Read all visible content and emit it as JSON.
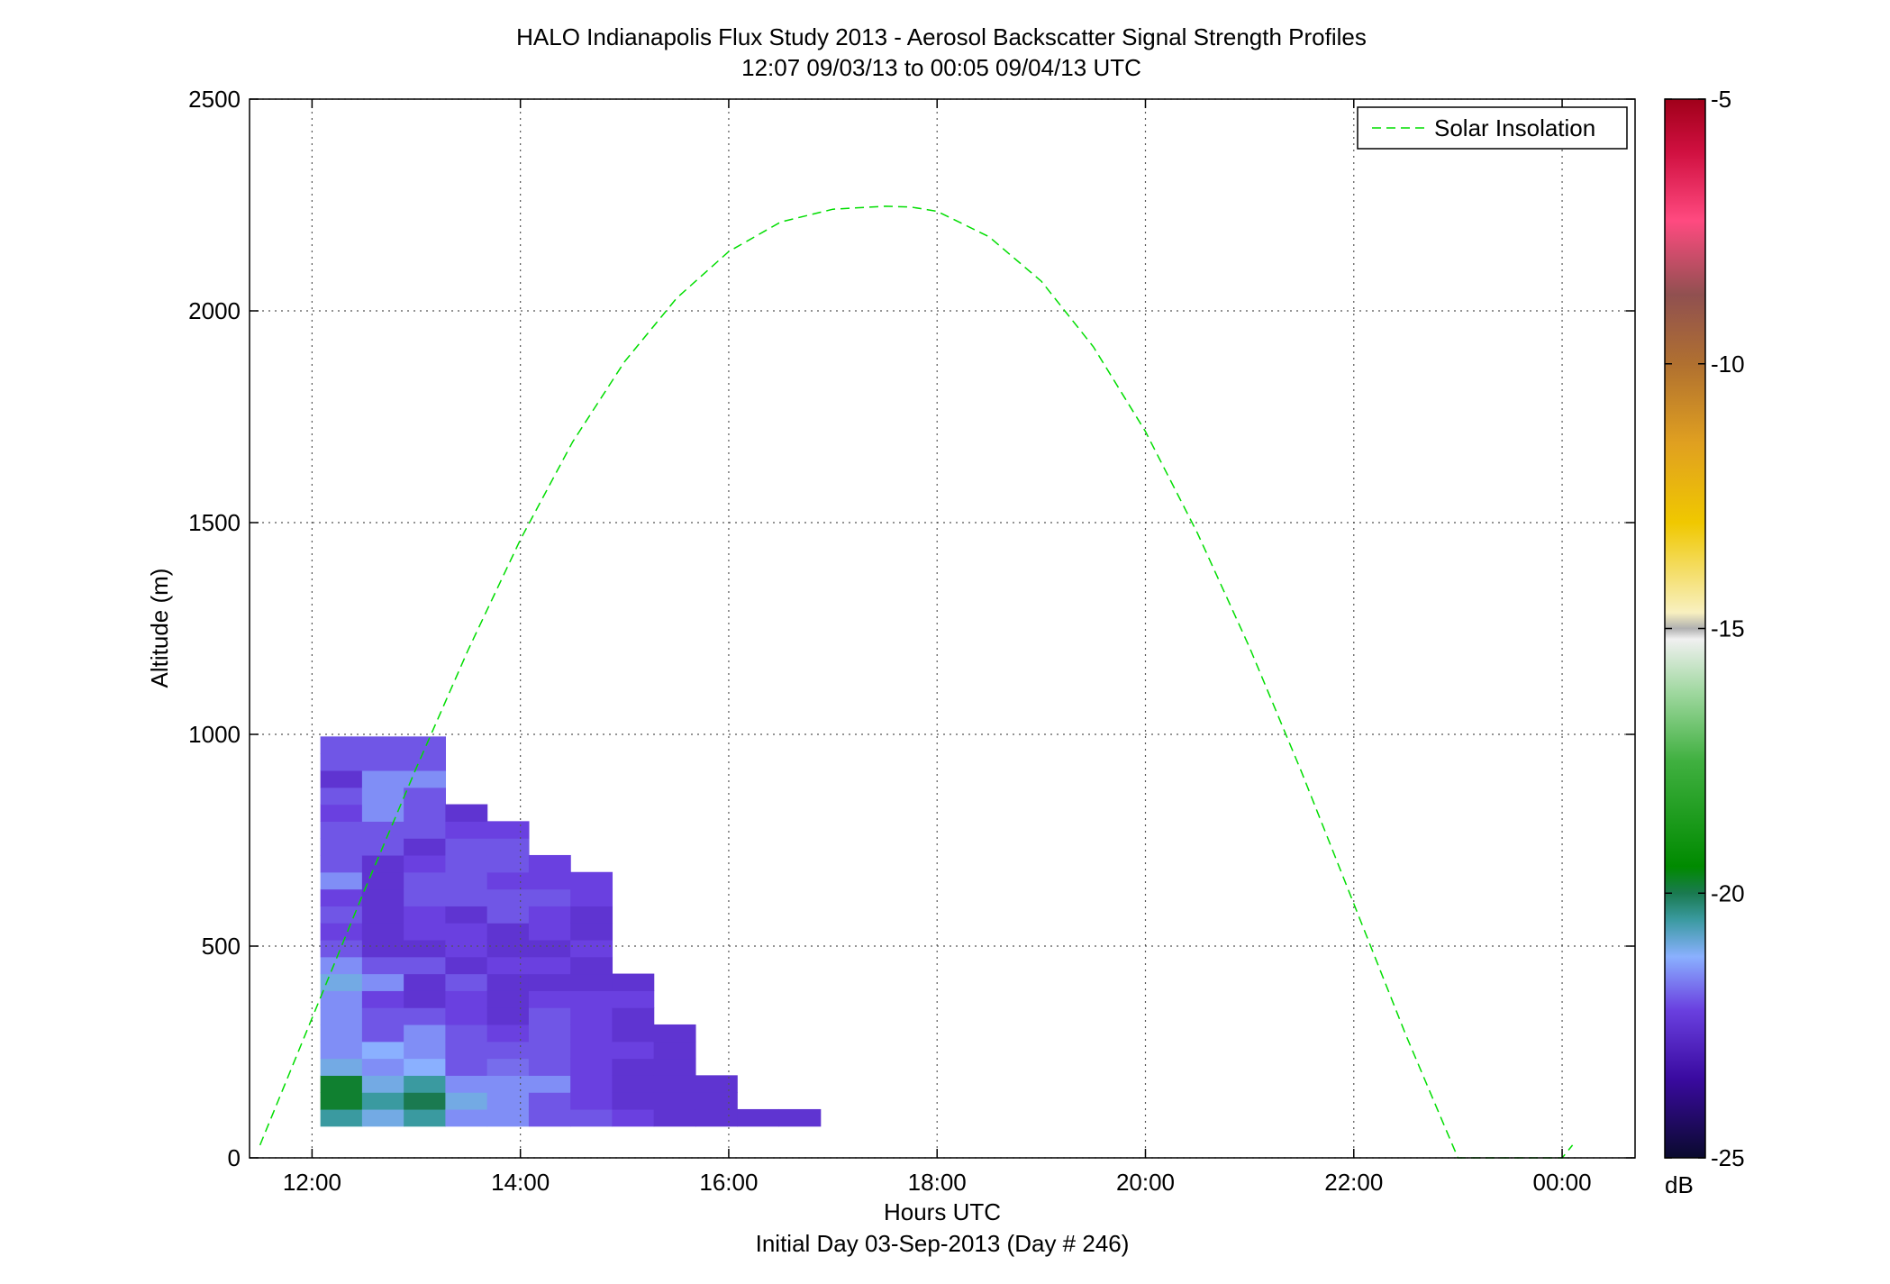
{
  "chart_data": {
    "type": "heatmap",
    "title": "HALO Indianapolis Flux Study 2013 - Aerosol Backscatter Signal Strength Profiles",
    "subtitle": "12:07 09/03/13 to 00:05 09/04/13  UTC",
    "xlabel": "Hours UTC",
    "xlabel2": "Initial Day 03-Sep-2013 (Day # 246)",
    "ylabel": "Altitude (m)",
    "xlim": [
      11.4,
      24.7
    ],
    "ylim": [
      0,
      2500
    ],
    "x_ticks": [
      12,
      14,
      16,
      18,
      20,
      22,
      24
    ],
    "x_tick_labels": [
      "12:00",
      "14:00",
      "16:00",
      "18:00",
      "20:00",
      "22:00",
      "00:00"
    ],
    "y_ticks": [
      0,
      500,
      1000,
      1500,
      2000,
      2500
    ],
    "y_tick_labels": [
      "0",
      "500",
      "1000",
      "1500",
      "2000",
      "2500"
    ],
    "grid": true,
    "colorbar": {
      "range": [
        -25,
        -5
      ],
      "ticks": [
        -5,
        -10,
        -15,
        -20,
        -25
      ],
      "tick_labels": [
        "-5",
        "-10",
        "-15",
        "-20",
        "-25"
      ],
      "label": "dB",
      "stops": [
        {
          "v": -25,
          "c": "#0a0a2e"
        },
        {
          "v": -23.5,
          "c": "#3a0aa0"
        },
        {
          "v": -22.2,
          "c": "#6a40e0"
        },
        {
          "v": -21.2,
          "c": "#8ab0ff"
        },
        {
          "v": -20.5,
          "c": "#3a9aa0"
        },
        {
          "v": -20,
          "c": "#1a7a50"
        },
        {
          "v": -19.5,
          "c": "#008a00"
        },
        {
          "v": -17.5,
          "c": "#40b040"
        },
        {
          "v": -16.2,
          "c": "#a0d8a0"
        },
        {
          "v": -15.2,
          "c": "#f0f0f0"
        },
        {
          "v": -15,
          "c": "#b0b0b0"
        },
        {
          "v": -14.7,
          "c": "#f8f0c0"
        },
        {
          "v": -13,
          "c": "#f0c800"
        },
        {
          "v": -11.5,
          "c": "#e0a020"
        },
        {
          "v": -10,
          "c": "#b07030"
        },
        {
          "v": -8.7,
          "c": "#905050"
        },
        {
          "v": -7.3,
          "c": "#ff4a80"
        },
        {
          "v": -6,
          "c": "#d01040"
        },
        {
          "v": -5,
          "c": "#a0001a"
        }
      ]
    },
    "legend": {
      "entries": [
        "Solar Insolation"
      ],
      "placement": "top-right",
      "line_color": "#00dd00",
      "line_style": "dashed"
    },
    "series": [
      {
        "name": "Solar Insolation",
        "kind": "line",
        "x": [
          11.5,
          12.0,
          12.5,
          13.0,
          13.5,
          14.0,
          14.5,
          15.0,
          15.5,
          16.0,
          16.5,
          17.0,
          17.5,
          17.75,
          18.0,
          18.5,
          19.0,
          19.5,
          20.0,
          20.5,
          21.0,
          21.5,
          22.0,
          22.5,
          23.0,
          23.5,
          24.0,
          24.1
        ],
        "y": [
          30,
          330,
          630,
          920,
          1200,
          1460,
          1690,
          1880,
          2030,
          2140,
          2210,
          2240,
          2247,
          2245,
          2235,
          2175,
          2070,
          1915,
          1715,
          1475,
          1205,
          910,
          600,
          290,
          0,
          0,
          0,
          30
        ]
      }
    ],
    "cells_meta": {
      "x_start": 12.08,
      "dx": 0.4,
      "y_start": 75,
      "dy": 40
    },
    "cells": [
      [
        -20.5,
        -19.8,
        -19.8,
        -21.0,
        -21.5,
        -21.5,
        -21.5,
        -21.5,
        -21.0,
        -21.5,
        -22.0,
        -22.2,
        -22.0,
        -22.2,
        -21.5,
        -22.0,
        -22.0,
        -22.0,
        -22.2,
        -22.0,
        -22.5,
        -22.0,
        -22.0
      ],
      [
        -21.0,
        -20.5,
        -21.0,
        -21.5,
        -21.2,
        -22.0,
        -22.0,
        -22.2,
        -21.5,
        -22.0,
        -22.5,
        -22.5,
        -22.5,
        -22.5,
        -22.5,
        -22.5,
        -22.0,
        -22.0,
        -21.5,
        -21.5,
        -21.5,
        -22.0,
        -22.0
      ],
      [
        -20.5,
        -20.0,
        -20.5,
        -21.2,
        -21.5,
        -21.5,
        -22.0,
        -22.5,
        -22.5,
        -22.0,
        -22.5,
        -22.2,
        -22.2,
        -22.0,
        -22.0,
        -22.2,
        -22.5,
        -22.0,
        -22.0,
        -22.0,
        -21.5,
        -22.0,
        -22.0
      ],
      [
        -21.5,
        -21.0,
        -21.5,
        -22.0,
        -22.0,
        -22.0,
        -22.2,
        -22.2,
        -22.0,
        -22.5,
        -22.2,
        -22.2,
        -22.5,
        -22.0,
        -22.0,
        -22.0,
        -22.0,
        -22.2,
        -22.5
      ],
      [
        -21.5,
        -21.5,
        -21.5,
        -21.8,
        -22.0,
        -22.2,
        -22.5,
        -22.5,
        -22.5,
        -22.2,
        -22.5,
        -22.5,
        -22.0,
        -22.0,
        -22.2,
        -22.0,
        -22.0,
        -22.2
      ],
      [
        -22.0,
        -22.0,
        -21.5,
        -22.0,
        -22.0,
        -22.0,
        -22.0,
        -22.2,
        -22.5,
        -22.2,
        -22.5,
        -22.2,
        -22.2,
        -22.0,
        -22.2,
        -22.2
      ],
      [
        -22.0,
        -22.2,
        -22.2,
        -22.2,
        -22.2,
        -22.2,
        -22.2,
        -22.2,
        -22.5,
        -22.5,
        -22.2,
        -22.5,
        -22.5,
        -22.2,
        -22.2
      ],
      [
        -22.2,
        -22.5,
        -22.5,
        -22.5,
        -22.2,
        -22.5,
        -22.5,
        -22.2,
        -22.5
      ],
      [
        -22.5,
        -22.5,
        -22.5,
        -22.5,
        -22.5,
        -22.5
      ],
      [
        -22.5,
        -22.5,
        -22.5
      ],
      [
        -22.5
      ],
      [
        -22.5
      ]
    ]
  }
}
